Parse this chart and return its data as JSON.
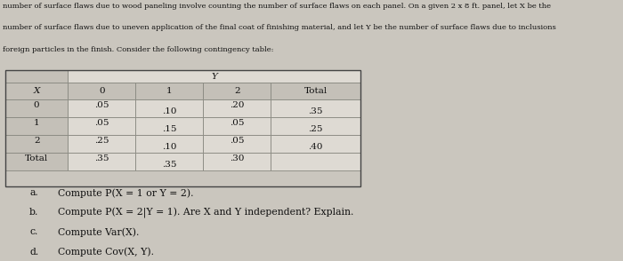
{
  "header_lines": [
    "number of surface flaws due to wood paneling involve counting the number of surface flaws on each panel. On a given 2 x 8 ft. panel, let X be the",
    "number of surface flaws due to uneven application of the final coat of finishing material, and let Y be the number of surface flaws due to inclusions",
    "foreign particles in the finish. Consider the following contingency table:"
  ],
  "col_labels": [
    "0",
    "1",
    "2",
    "Total"
  ],
  "row_labels": [
    "0",
    "1",
    "2",
    "Total"
  ],
  "data": [
    [
      ".05",
      ".10",
      ".20",
      ".35"
    ],
    [
      ".05",
      ".15",
      ".05",
      ".25"
    ],
    [
      ".25",
      ".10",
      ".05",
      ".40"
    ],
    [
      ".35",
      ".35",
      ".30",
      ""
    ]
  ],
  "questions": [
    [
      "a.",
      "Compute P(X = 1 or Y = 2)."
    ],
    [
      "b.",
      "Compute P(X = 2|Y = 1). Are X and Y independent? Explain."
    ],
    [
      "c.",
      "Compute Var(X)."
    ],
    [
      "d.",
      "Compute Cov(X, Y)."
    ]
  ],
  "bg_color": "#cac6be",
  "table_light": "#dedad3",
  "table_dark": "#c4c0b8",
  "cell_edge": "#888880",
  "text_color": "#111111"
}
